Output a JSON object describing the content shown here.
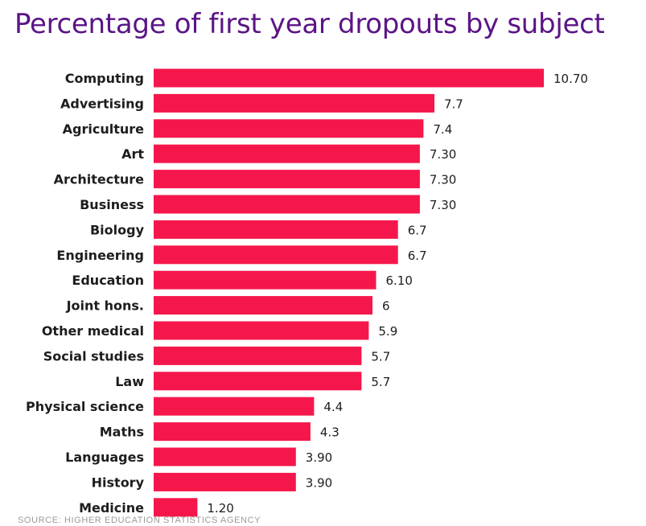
{
  "chart_data": {
    "type": "bar",
    "orientation": "horizontal",
    "title": "Percentage of first year dropouts by subject",
    "xlabel": "",
    "ylabel": "",
    "grid": false,
    "xlim": [
      0,
      10.7
    ],
    "bar_color": "#f5174b",
    "title_color": "#5b1486",
    "categories": [
      "Computing",
      "Advertising",
      "Agriculture",
      "Art",
      "Architecture",
      "Business",
      "Biology",
      "Engineering",
      "Education",
      "Joint hons.",
      "Other medical",
      "Social studies",
      "Law",
      "Physical science",
      "Maths",
      "Languages",
      "History",
      "Medicine"
    ],
    "values": [
      10.7,
      7.7,
      7.4,
      7.3,
      7.3,
      7.3,
      6.7,
      6.7,
      6.1,
      6,
      5.9,
      5.7,
      5.7,
      4.4,
      4.3,
      3.9,
      3.9,
      1.2
    ],
    "data_labels": [
      "10.70",
      "7.7",
      "7.4",
      "7.30",
      "7.30",
      "7.30",
      "6.7",
      "6.7",
      "6.10",
      "6",
      "5.9",
      "5.7",
      "5.7",
      "4.4",
      "4.3",
      "3.90",
      "3.90",
      "1.20"
    ],
    "source": "SOURCE: HIGHER EDUCATION STATISTICS AGENCY"
  }
}
